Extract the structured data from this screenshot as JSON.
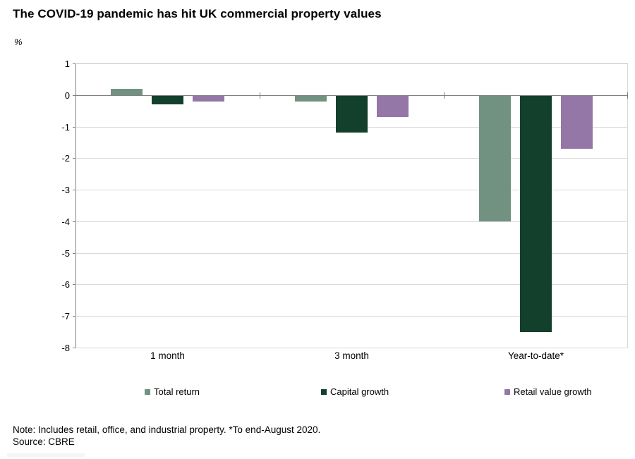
{
  "title": "The COVID-19 pandemic has hit UK commercial property values",
  "unit_label": "%",
  "note": "Note: Includes retail, office, and industrial property. *To end-August 2020.",
  "source": "Source: CBRE",
  "colors": {
    "total_return": "#719280",
    "capital_growth": "#13402C",
    "retail_value_growth": "#9477A6",
    "gridline": "#D9D9D9",
    "zero_line": "#808080",
    "axis": "#808080"
  },
  "chart_data": {
    "type": "bar",
    "title": "The COVID-19 pandemic has hit UK commercial property values",
    "xlabel": "",
    "ylabel": "%",
    "categories": [
      "1 month",
      "3 month",
      "Year-to-date*"
    ],
    "series": [
      {
        "name": "Total return",
        "color": "#719280",
        "values": [
          0.2,
          -0.2,
          -4.0
        ]
      },
      {
        "name": "Capital growth",
        "color": "#13402C",
        "values": [
          -0.3,
          -1.2,
          -7.5
        ]
      },
      {
        "name": "Retail value growth",
        "color": "#9477A6",
        "values": [
          -0.2,
          -0.7,
          -1.7
        ]
      }
    ],
    "ylim": [
      -8,
      1
    ],
    "yticks": [
      1,
      0,
      -1,
      -2,
      -3,
      -4,
      -5,
      -6,
      -7,
      -8
    ],
    "grid": true,
    "legend_position": "bottom"
  }
}
